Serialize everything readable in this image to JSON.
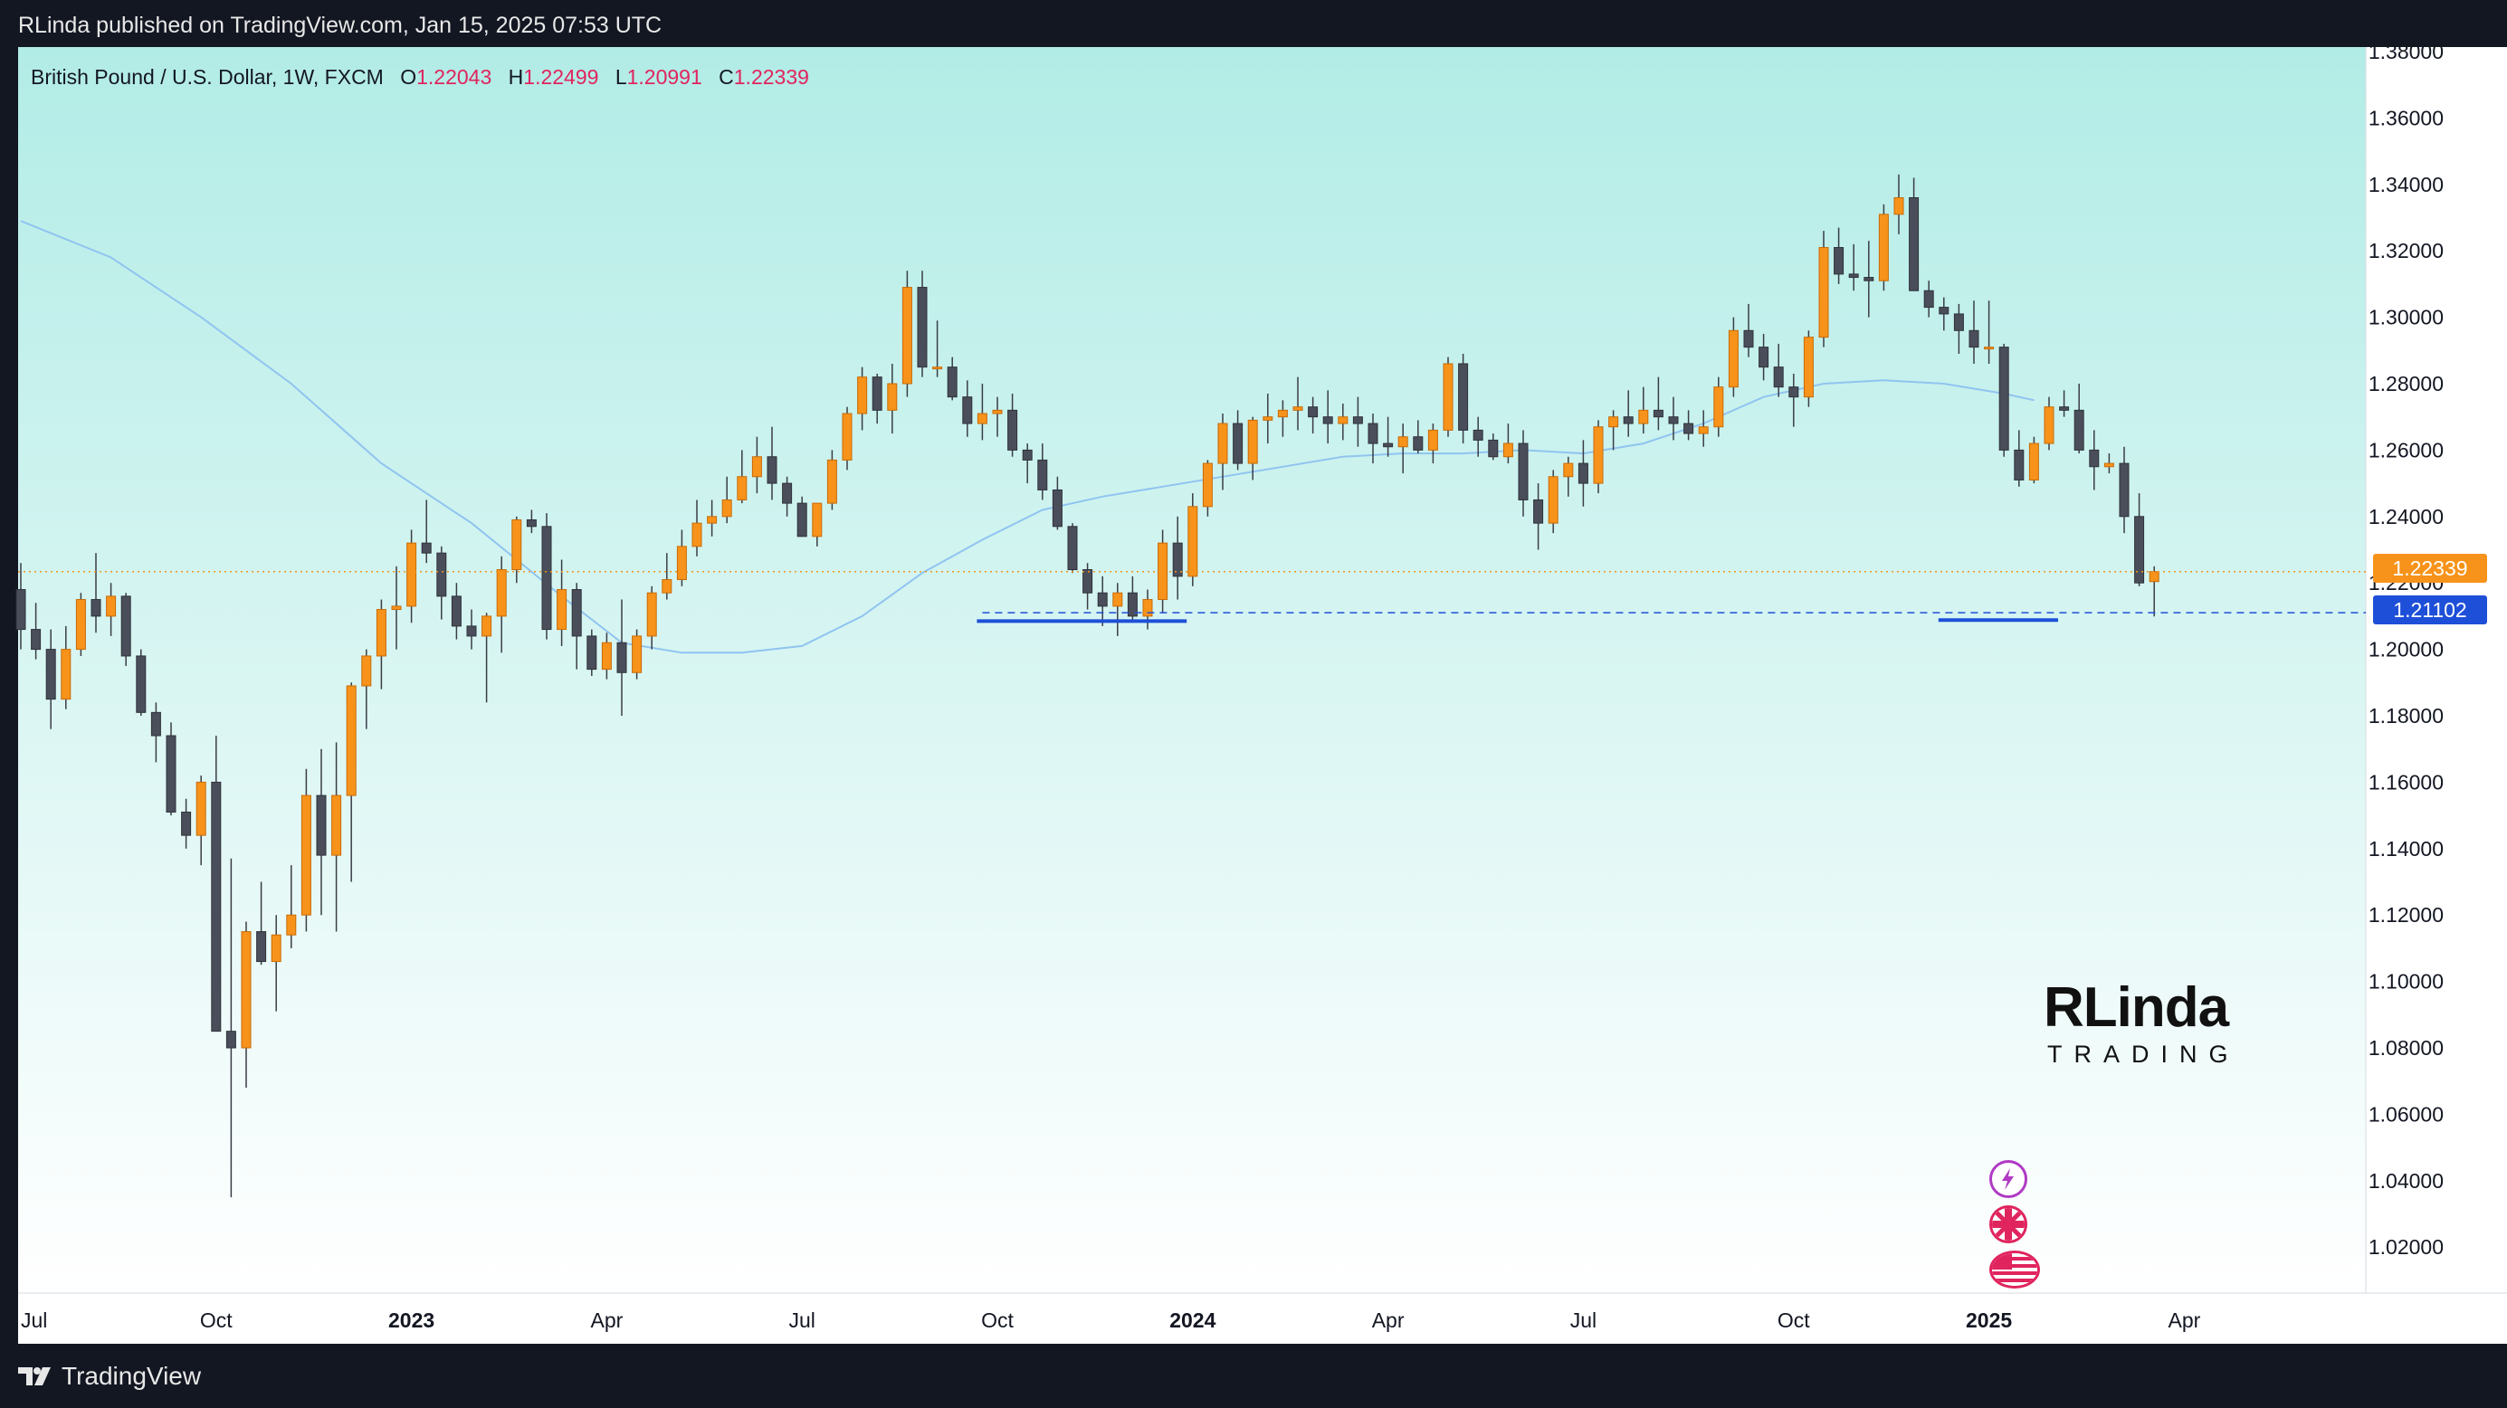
{
  "header": {
    "published": "RLinda published on TradingView.com, Jan 15, 2025 07:53 UTC"
  },
  "legend": {
    "symbol": "British Pound / U.S. Dollar, 1W, FXCM",
    "o_label": "O",
    "o_value": "1.22043",
    "h_label": "H",
    "h_value": "1.22499",
    "l_label": "L",
    "l_value": "1.20991",
    "c_label": "C",
    "c_value": "1.22339"
  },
  "price_labels": {
    "current": "1.22339",
    "level": "1.21102"
  },
  "brand": {
    "name": "RLinda",
    "sub": "TRADING"
  },
  "footer": {
    "logo_text": "TradingView"
  },
  "colors": {
    "up": "#f7931a",
    "down": "#4a4e5a",
    "ma": "#90c4f0",
    "level": "#1e4fd8",
    "current": "#f7931a",
    "bg_top": "#b2ece6",
    "bg_bottom": "#ffffff"
  },
  "chart_data": {
    "type": "candlestick",
    "title": "British Pound / U.S. Dollar, 1W, FXCM",
    "ylim": [
      1.01,
      1.385
    ],
    "y_ticks": [
      "1.38000",
      "1.36000",
      "1.34000",
      "1.32000",
      "1.30000",
      "1.28000",
      "1.26000",
      "1.24000",
      "1.22000",
      "1.20000",
      "1.18000",
      "1.16000",
      "1.14000",
      "1.12000",
      "1.10000",
      "1.08000",
      "1.06000",
      "1.04000",
      "1.02000"
    ],
    "x_ticks": [
      {
        "label": "Jul",
        "index": 0
      },
      {
        "label": "Oct",
        "index": 13
      },
      {
        "label": "2023",
        "index": 26
      },
      {
        "label": "Apr",
        "index": 39
      },
      {
        "label": "Jul",
        "index": 52
      },
      {
        "label": "Oct",
        "index": 65
      },
      {
        "label": "2024",
        "index": 78
      },
      {
        "label": "Apr",
        "index": 91
      },
      {
        "label": "Jul",
        "index": 104
      },
      {
        "label": "Oct",
        "index": 118
      },
      {
        "label": "2025",
        "index": 131
      },
      {
        "label": "Apr",
        "index": 144
      }
    ],
    "levels": [
      {
        "name": "support-left",
        "value": 1.2085,
        "from": 64,
        "to": 77
      },
      {
        "name": "support-right",
        "value": 1.2088,
        "from": 128,
        "to": 135
      }
    ],
    "dashed_level": 1.21102,
    "current_price": 1.22339,
    "ohlc": [
      [
        1.218,
        1.226,
        1.2,
        1.206
      ],
      [
        1.206,
        1.214,
        1.197,
        1.2
      ],
      [
        1.2,
        1.206,
        1.176,
        1.185
      ],
      [
        1.185,
        1.207,
        1.182,
        1.2
      ],
      [
        1.2,
        1.217,
        1.198,
        1.215
      ],
      [
        1.215,
        1.229,
        1.205,
        1.21
      ],
      [
        1.21,
        1.22,
        1.204,
        1.216
      ],
      [
        1.216,
        1.217,
        1.195,
        1.198
      ],
      [
        1.198,
        1.2,
        1.18,
        1.181
      ],
      [
        1.181,
        1.184,
        1.166,
        1.174
      ],
      [
        1.174,
        1.178,
        1.15,
        1.151
      ],
      [
        1.151,
        1.155,
        1.14,
        1.144
      ],
      [
        1.144,
        1.162,
        1.135,
        1.16
      ],
      [
        1.16,
        1.174,
        1.085,
        1.085
      ],
      [
        1.085,
        1.137,
        1.035,
        1.08
      ],
      [
        1.08,
        1.118,
        1.068,
        1.115
      ],
      [
        1.115,
        1.13,
        1.105,
        1.106
      ],
      [
        1.106,
        1.12,
        1.091,
        1.114
      ],
      [
        1.114,
        1.135,
        1.11,
        1.12
      ],
      [
        1.12,
        1.164,
        1.115,
        1.156
      ],
      [
        1.156,
        1.17,
        1.12,
        1.138
      ],
      [
        1.138,
        1.172,
        1.115,
        1.156
      ],
      [
        1.156,
        1.19,
        1.13,
        1.189
      ],
      [
        1.189,
        1.2,
        1.176,
        1.198
      ],
      [
        1.198,
        1.215,
        1.188,
        1.212
      ],
      [
        1.212,
        1.225,
        1.2,
        1.213
      ],
      [
        1.213,
        1.236,
        1.208,
        1.232
      ],
      [
        1.232,
        1.245,
        1.226,
        1.229
      ],
      [
        1.229,
        1.231,
        1.209,
        1.216
      ],
      [
        1.216,
        1.22,
        1.203,
        1.207
      ],
      [
        1.207,
        1.212,
        1.2,
        1.204
      ],
      [
        1.204,
        1.211,
        1.184,
        1.21
      ],
      [
        1.21,
        1.228,
        1.199,
        1.224
      ],
      [
        1.224,
        1.24,
        1.22,
        1.239
      ],
      [
        1.239,
        1.242,
        1.235,
        1.237
      ],
      [
        1.237,
        1.241,
        1.203,
        1.206
      ],
      [
        1.206,
        1.227,
        1.201,
        1.218
      ],
      [
        1.218,
        1.22,
        1.194,
        1.204
      ],
      [
        1.204,
        1.206,
        1.192,
        1.194
      ],
      [
        1.194,
        1.205,
        1.191,
        1.202
      ],
      [
        1.202,
        1.215,
        1.18,
        1.193
      ],
      [
        1.193,
        1.206,
        1.191,
        1.204
      ],
      [
        1.204,
        1.219,
        1.2,
        1.217
      ],
      [
        1.217,
        1.229,
        1.215,
        1.221
      ],
      [
        1.221,
        1.236,
        1.219,
        1.231
      ],
      [
        1.231,
        1.245,
        1.228,
        1.238
      ],
      [
        1.238,
        1.245,
        1.234,
        1.24
      ],
      [
        1.24,
        1.252,
        1.238,
        1.245
      ],
      [
        1.245,
        1.26,
        1.244,
        1.252
      ],
      [
        1.252,
        1.264,
        1.247,
        1.258
      ],
      [
        1.258,
        1.267,
        1.245,
        1.25
      ],
      [
        1.25,
        1.252,
        1.24,
        1.244
      ],
      [
        1.244,
        1.246,
        1.234,
        1.234
      ],
      [
        1.234,
        1.244,
        1.231,
        1.244
      ],
      [
        1.244,
        1.26,
        1.242,
        1.257
      ],
      [
        1.257,
        1.273,
        1.254,
        1.271
      ],
      [
        1.271,
        1.285,
        1.266,
        1.282
      ],
      [
        1.282,
        1.283,
        1.268,
        1.272
      ],
      [
        1.272,
        1.286,
        1.265,
        1.28
      ],
      [
        1.28,
        1.314,
        1.276,
        1.309
      ],
      [
        1.309,
        1.314,
        1.282,
        1.285
      ],
      [
        1.285,
        1.299,
        1.282,
        1.285
      ],
      [
        1.285,
        1.288,
        1.275,
        1.276
      ],
      [
        1.276,
        1.281,
        1.264,
        1.268
      ],
      [
        1.268,
        1.28,
        1.263,
        1.271
      ],
      [
        1.271,
        1.276,
        1.264,
        1.272
      ],
      [
        1.272,
        1.277,
        1.258,
        1.26
      ],
      [
        1.26,
        1.262,
        1.25,
        1.257
      ],
      [
        1.257,
        1.262,
        1.245,
        1.248
      ],
      [
        1.248,
        1.252,
        1.236,
        1.237
      ],
      [
        1.237,
        1.238,
        1.223,
        1.224
      ],
      [
        1.224,
        1.226,
        1.212,
        1.217
      ],
      [
        1.217,
        1.222,
        1.207,
        1.213
      ],
      [
        1.213,
        1.22,
        1.204,
        1.217
      ],
      [
        1.217,
        1.222,
        1.208,
        1.21
      ],
      [
        1.21,
        1.218,
        1.206,
        1.215
      ],
      [
        1.215,
        1.236,
        1.211,
        1.232
      ],
      [
        1.232,
        1.24,
        1.215,
        1.222
      ],
      [
        1.222,
        1.247,
        1.219,
        1.243
      ],
      [
        1.243,
        1.257,
        1.24,
        1.256
      ],
      [
        1.256,
        1.271,
        1.248,
        1.268
      ],
      [
        1.268,
        1.272,
        1.254,
        1.256
      ],
      [
        1.256,
        1.27,
        1.251,
        1.269
      ],
      [
        1.269,
        1.277,
        1.262,
        1.27
      ],
      [
        1.27,
        1.275,
        1.264,
        1.272
      ],
      [
        1.272,
        1.282,
        1.266,
        1.273
      ],
      [
        1.273,
        1.276,
        1.265,
        1.27
      ],
      [
        1.27,
        1.278,
        1.262,
        1.268
      ],
      [
        1.268,
        1.274,
        1.263,
        1.27
      ],
      [
        1.27,
        1.276,
        1.261,
        1.268
      ],
      [
        1.268,
        1.271,
        1.256,
        1.262
      ],
      [
        1.262,
        1.27,
        1.258,
        1.261
      ],
      [
        1.261,
        1.268,
        1.253,
        1.264
      ],
      [
        1.264,
        1.269,
        1.259,
        1.26
      ],
      [
        1.26,
        1.268,
        1.256,
        1.266
      ],
      [
        1.266,
        1.288,
        1.264,
        1.286
      ],
      [
        1.286,
        1.289,
        1.262,
        1.266
      ],
      [
        1.266,
        1.27,
        1.258,
        1.263
      ],
      [
        1.263,
        1.265,
        1.257,
        1.258
      ],
      [
        1.258,
        1.268,
        1.256,
        1.262
      ],
      [
        1.262,
        1.266,
        1.24,
        1.245
      ],
      [
        1.245,
        1.25,
        1.23,
        1.238
      ],
      [
        1.238,
        1.254,
        1.235,
        1.252
      ],
      [
        1.252,
        1.258,
        1.246,
        1.256
      ],
      [
        1.256,
        1.263,
        1.243,
        1.25
      ],
      [
        1.25,
        1.269,
        1.247,
        1.267
      ],
      [
        1.267,
        1.272,
        1.26,
        1.27
      ],
      [
        1.27,
        1.278,
        1.264,
        1.268
      ],
      [
        1.268,
        1.279,
        1.265,
        1.272
      ],
      [
        1.272,
        1.282,
        1.266,
        1.27
      ],
      [
        1.27,
        1.276,
        1.263,
        1.268
      ],
      [
        1.268,
        1.272,
        1.263,
        1.265
      ],
      [
        1.265,
        1.272,
        1.261,
        1.267
      ],
      [
        1.267,
        1.282,
        1.264,
        1.279
      ],
      [
        1.279,
        1.3,
        1.276,
        1.296
      ],
      [
        1.296,
        1.304,
        1.288,
        1.291
      ],
      [
        1.291,
        1.295,
        1.281,
        1.285
      ],
      [
        1.285,
        1.292,
        1.276,
        1.279
      ],
      [
        1.279,
        1.283,
        1.267,
        1.276
      ],
      [
        1.276,
        1.296,
        1.273,
        1.294
      ],
      [
        1.294,
        1.326,
        1.291,
        1.321
      ],
      [
        1.321,
        1.327,
        1.31,
        1.313
      ],
      [
        1.313,
        1.322,
        1.308,
        1.312
      ],
      [
        1.312,
        1.323,
        1.3,
        1.311
      ],
      [
        1.311,
        1.334,
        1.308,
        1.331
      ],
      [
        1.331,
        1.343,
        1.325,
        1.336
      ],
      [
        1.336,
        1.342,
        1.308,
        1.308
      ],
      [
        1.308,
        1.311,
        1.3,
        1.303
      ],
      [
        1.303,
        1.306,
        1.296,
        1.301
      ],
      [
        1.301,
        1.304,
        1.289,
        1.296
      ],
      [
        1.296,
        1.305,
        1.286,
        1.291
      ],
      [
        1.291,
        1.305,
        1.286,
        1.291
      ],
      [
        1.291,
        1.292,
        1.258,
        1.26
      ],
      [
        1.26,
        1.266,
        1.249,
        1.251
      ],
      [
        1.251,
        1.264,
        1.25,
        1.262
      ],
      [
        1.262,
        1.276,
        1.26,
        1.273
      ],
      [
        1.273,
        1.278,
        1.27,
        1.272
      ],
      [
        1.272,
        1.28,
        1.259,
        1.26
      ],
      [
        1.26,
        1.266,
        1.248,
        1.255
      ],
      [
        1.255,
        1.259,
        1.253,
        1.256
      ],
      [
        1.256,
        1.261,
        1.235,
        1.24
      ],
      [
        1.24,
        1.247,
        1.219,
        1.22
      ],
      [
        1.2204,
        1.225,
        1.2099,
        1.2234
      ]
    ],
    "ma": [
      [
        0,
        1.329
      ],
      [
        6,
        1.318
      ],
      [
        12,
        1.3
      ],
      [
        18,
        1.28
      ],
      [
        24,
        1.256
      ],
      [
        30,
        1.238
      ],
      [
        36,
        1.216
      ],
      [
        40,
        1.202
      ],
      [
        44,
        1.199
      ],
      [
        48,
        1.199
      ],
      [
        52,
        1.201
      ],
      [
        56,
        1.21
      ],
      [
        60,
        1.223
      ],
      [
        64,
        1.233
      ],
      [
        68,
        1.242
      ],
      [
        72,
        1.246
      ],
      [
        76,
        1.249
      ],
      [
        80,
        1.252
      ],
      [
        84,
        1.255
      ],
      [
        88,
        1.258
      ],
      [
        92,
        1.259
      ],
      [
        96,
        1.259
      ],
      [
        100,
        1.26
      ],
      [
        104,
        1.259
      ],
      [
        108,
        1.262
      ],
      [
        112,
        1.268
      ],
      [
        116,
        1.276
      ],
      [
        120,
        1.28
      ],
      [
        124,
        1.281
      ],
      [
        128,
        1.28
      ],
      [
        132,
        1.277
      ],
      [
        134,
        1.275
      ]
    ]
  }
}
